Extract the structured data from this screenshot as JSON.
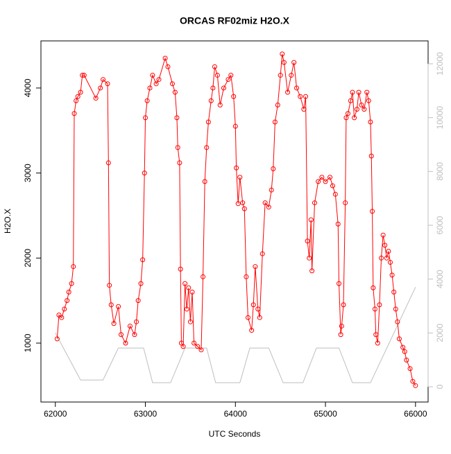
{
  "chart_data": {
    "type": "line",
    "title": "ORCAS RF02miz H2O.X",
    "x_label": "UTC Seconds",
    "y_label": "H2O.X",
    "xlim": [
      61840,
      66140
    ],
    "xticks": [
      62000,
      63000,
      64000,
      65000,
      66000
    ],
    "ylim": [
      307,
      4554
    ],
    "yticks": [
      1000,
      2000,
      3000,
      4000
    ],
    "y2lim": [
      -567,
      12850
    ],
    "y2ticks": [
      0,
      2000,
      4000,
      6000,
      8000,
      10000,
      12000
    ],
    "series": [
      {
        "color": "#ff0000",
        "marker": "circle",
        "x": [
          62020,
          62040,
          62070,
          62100,
          62130,
          62150,
          62180,
          62200,
          62210,
          62230,
          62250,
          62280,
          62300,
          62320,
          62450,
          62500,
          62530,
          62580,
          62590,
          62600,
          62620,
          62650,
          62700,
          62730,
          62780,
          62830,
          62880,
          62900,
          62920,
          62950,
          62970,
          62990,
          63000,
          63020,
          63050,
          63080,
          63120,
          63150,
          63220,
          63250,
          63300,
          63330,
          63350,
          63360,
          63380,
          63390,
          63400,
          63420,
          63440,
          63460,
          63480,
          63500,
          63520,
          63540,
          63580,
          63620,
          63640,
          63660,
          63680,
          63700,
          63730,
          63750,
          63770,
          63800,
          63830,
          63870,
          63920,
          63950,
          63980,
          64000,
          64010,
          64030,
          64050,
          64080,
          64100,
          64120,
          64140,
          64180,
          64200,
          64220,
          64250,
          64270,
          64300,
          64330,
          64370,
          64400,
          64420,
          64440,
          64470,
          64500,
          64520,
          64540,
          64580,
          64620,
          64650,
          64680,
          64720,
          64760,
          64780,
          64800,
          64820,
          64840,
          64850,
          64880,
          64920,
          64960,
          65000,
          65050,
          65080,
          65110,
          65140,
          65150,
          65170,
          65180,
          65200,
          65220,
          65230,
          65250,
          65280,
          65300,
          65320,
          65350,
          65370,
          65400,
          65430,
          65460,
          65480,
          65500,
          65510,
          65520,
          65530,
          65550,
          65560,
          65580,
          65600,
          65620,
          65640,
          65660,
          65680,
          65700,
          65720,
          65740,
          65760,
          65780,
          65800,
          65820,
          65860,
          65880,
          65900,
          65940,
          65970,
          66000
        ],
        "values": [
          1050,
          1330,
          1300,
          1400,
          1500,
          1600,
          1700,
          1900,
          3700,
          3850,
          3900,
          3950,
          4150,
          4150,
          3880,
          4000,
          4100,
          4050,
          3120,
          1680,
          1450,
          1230,
          1430,
          1100,
          1000,
          1200,
          1100,
          1250,
          1500,
          1700,
          1980,
          3000,
          3650,
          3850,
          4000,
          4150,
          4050,
          4100,
          4350,
          4250,
          4050,
          3950,
          3650,
          3300,
          3120,
          1870,
          1000,
          960,
          1700,
          1400,
          1650,
          1250,
          1600,
          1000,
          960,
          920,
          1780,
          2900,
          3300,
          3600,
          3850,
          4000,
          4250,
          4150,
          3800,
          4000,
          4100,
          4150,
          3900,
          3550,
          3060,
          2640,
          2950,
          2650,
          2580,
          1780,
          1300,
          1150,
          1450,
          1900,
          1400,
          1300,
          2050,
          2650,
          2600,
          2800,
          3050,
          3600,
          3800,
          4150,
          4400,
          4300,
          3950,
          4150,
          4300,
          4000,
          3900,
          3750,
          3900,
          2200,
          2000,
          2450,
          1850,
          2650,
          2900,
          2950,
          2900,
          2950,
          2850,
          2750,
          2400,
          1700,
          1100,
          1200,
          1450,
          2650,
          3650,
          3700,
          3850,
          3950,
          3650,
          3750,
          3950,
          3800,
          3750,
          3950,
          3850,
          3600,
          3200,
          2550,
          1650,
          1400,
          1100,
          1000,
          1450,
          2000,
          2270,
          2150,
          2000,
          2080,
          1950,
          1800,
          1600,
          1400,
          1250,
          1050,
          950,
          900,
          800,
          700,
          550,
          500
        ]
      },
      {
        "color": "#bebebe",
        "axis": "y2",
        "x": [
          62000,
          62280,
          62530,
          62700,
          62980,
          63080,
          63280,
          63440,
          63680,
          63780,
          64050,
          64160,
          64370,
          64530,
          64750,
          64900,
          65150,
          65300,
          65500,
          66000
        ],
        "values": [
          2000,
          250,
          250,
          1440,
          1440,
          150,
          150,
          1440,
          1440,
          150,
          150,
          1440,
          1440,
          150,
          150,
          1440,
          1440,
          150,
          150,
          3700
        ]
      }
    ]
  }
}
